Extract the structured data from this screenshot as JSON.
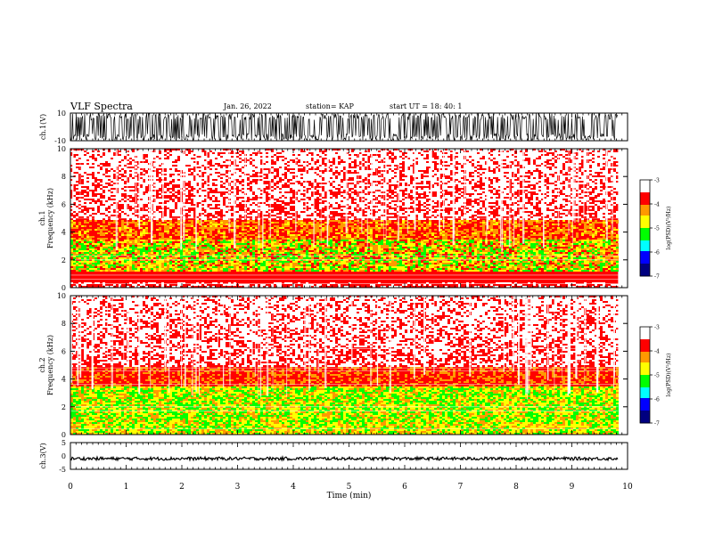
{
  "header": {
    "title": "VLF Spectra",
    "date": "Jan. 26, 2022",
    "station": "station= KAP",
    "start": "start  UT =   18: 40: 1"
  },
  "colors": {
    "white": "#ffffff",
    "red": "#ff0000",
    "orange": "#ff9900",
    "yellow": "#ffff00",
    "green": "#00ff00",
    "cyan": "#00ffff",
    "blue": "#0000ff",
    "navy": "#000080",
    "black": "#000000"
  },
  "chart_data": [
    {
      "type": "line",
      "panel": "ch1-waveform",
      "ylabel": "ch.1(V)",
      "ylim": [
        -10,
        10
      ],
      "yticks": [
        "10",
        "-10"
      ],
      "xlim": [
        0,
        9.83
      ],
      "description_values": "dense noisy waveform saturating between -10 and 10 V"
    },
    {
      "type": "heatmap",
      "panel": "ch1-spectrogram",
      "ylabel": "ch.1\nFrequency  (kHz)",
      "ylim": [
        0,
        10
      ],
      "yticks": [
        "0",
        "2",
        "4",
        "6",
        "8",
        "10"
      ],
      "xlim": [
        0,
        9.83
      ],
      "band_profile": [
        {
          "f_min": 0,
          "f_max": 0.5,
          "dominant": "red/white lines"
        },
        {
          "f_min": 0.5,
          "f_max": 1.2,
          "dominant": "red"
        },
        {
          "f_min": 1.2,
          "f_max": 3.5,
          "dominant": "yellow/green"
        },
        {
          "f_min": 3.5,
          "f_max": 5.0,
          "dominant": "orange/yellow"
        },
        {
          "f_min": 5.0,
          "f_max": 10,
          "dominant": "red/white speckle"
        }
      ],
      "colorbar": {
        "label": "log(PSD)(V²/Hz)",
        "range": [
          -7,
          -3
        ],
        "ticks": [
          "-3",
          "-4",
          "-5",
          "-6",
          "-7"
        ]
      }
    },
    {
      "type": "heatmap",
      "panel": "ch2-spectrogram",
      "ylabel": "ch.2\nFrequency  (kHz)",
      "ylim": [
        0,
        10
      ],
      "yticks": [
        "0",
        "2",
        "4",
        "6",
        "8",
        "10"
      ],
      "xlim": [
        0,
        9.83
      ],
      "band_profile": [
        {
          "f_min": 0,
          "f_max": 1.0,
          "dominant": "yellow/green"
        },
        {
          "f_min": 1.0,
          "f_max": 3.5,
          "dominant": "green/yellow"
        },
        {
          "f_min": 3.5,
          "f_max": 5.0,
          "dominant": "orange/red"
        },
        {
          "f_min": 5.0,
          "f_max": 10,
          "dominant": "red/white speckle"
        }
      ],
      "colorbar": {
        "label": "log(PSD)(V²/Hz)",
        "range": [
          -7,
          -3
        ],
        "ticks": [
          "-3",
          "-4",
          "-5",
          "-6",
          "-7"
        ]
      }
    },
    {
      "type": "line",
      "panel": "ch3-waveform",
      "ylabel": "ch.3(V)",
      "ylim": [
        -5,
        5
      ],
      "yticks": [
        "5",
        "0",
        "-5"
      ],
      "xlim": [
        0,
        9.83
      ],
      "description_values": "narrow band around -1 V"
    }
  ],
  "xaxis": {
    "label": "Time  (min)",
    "range": [
      0,
      10
    ],
    "ticks": [
      "0",
      "1",
      "2",
      "3",
      "4",
      "5",
      "6",
      "7",
      "8",
      "9",
      "10"
    ]
  }
}
